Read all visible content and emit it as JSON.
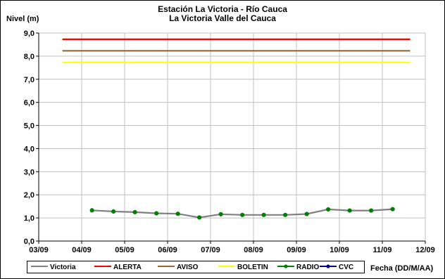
{
  "chart_data": {
    "type": "line",
    "title": "Estación La Victoria - Río Cauca",
    "subtitle": "La Victoria Valle del Cauca",
    "ylabel": "Nivel (m)",
    "xlabel": "Fecha (DD/M/AA)",
    "ylim": [
      0,
      9
    ],
    "y_ticks": [
      "0,0",
      "1,0",
      "2,0",
      "3,0",
      "4,0",
      "5,0",
      "6,0",
      "7,0",
      "8,0",
      "9,0"
    ],
    "x_ticks": [
      "03/09",
      "04/09",
      "05/09",
      "06/09",
      "07/09",
      "08/09",
      "09/09",
      "10/09",
      "11/09",
      "12/09"
    ],
    "xlim": [
      0,
      9
    ],
    "grid": true,
    "legend_position": "bottom",
    "series": [
      {
        "name": "Victoria",
        "color": "#808080",
        "kind": "line",
        "x": [
          1.24,
          1.74,
          2.24,
          2.74,
          3.24,
          3.74,
          4.24,
          4.74,
          5.24,
          5.74,
          6.24,
          6.74,
          7.24,
          7.74,
          8.24
        ],
        "values": [
          1.33,
          1.28,
          1.25,
          1.2,
          1.18,
          1.02,
          1.16,
          1.13,
          1.13,
          1.13,
          1.17,
          1.37,
          1.32,
          1.32,
          1.38
        ]
      },
      {
        "name": "ALERTA",
        "color": "#ff0000",
        "kind": "hline",
        "x": [
          0.55,
          8.65
        ],
        "values": [
          8.73,
          8.73
        ]
      },
      {
        "name": "AVISO",
        "color": "#996633",
        "kind": "hline",
        "x": [
          0.55,
          8.65
        ],
        "values": [
          8.23,
          8.23
        ]
      },
      {
        "name": "BOLETIN",
        "color": "#ffff00",
        "kind": "hline",
        "x": [
          0.55,
          8.65
        ],
        "values": [
          7.73,
          7.73
        ]
      },
      {
        "name": "RADIO",
        "color": "#008000",
        "kind": "markers",
        "x": [
          1.24,
          1.74,
          2.24,
          2.74,
          3.24,
          3.74,
          4.24,
          4.74,
          5.24,
          5.74,
          6.24,
          6.74,
          7.24,
          7.74,
          8.24
        ],
        "values": [
          1.33,
          1.28,
          1.25,
          1.2,
          1.18,
          1.02,
          1.16,
          1.13,
          1.13,
          1.13,
          1.17,
          1.37,
          1.32,
          1.32,
          1.38
        ]
      },
      {
        "name": "CVC",
        "color": "#000080",
        "kind": "none",
        "x": [],
        "values": []
      }
    ]
  }
}
